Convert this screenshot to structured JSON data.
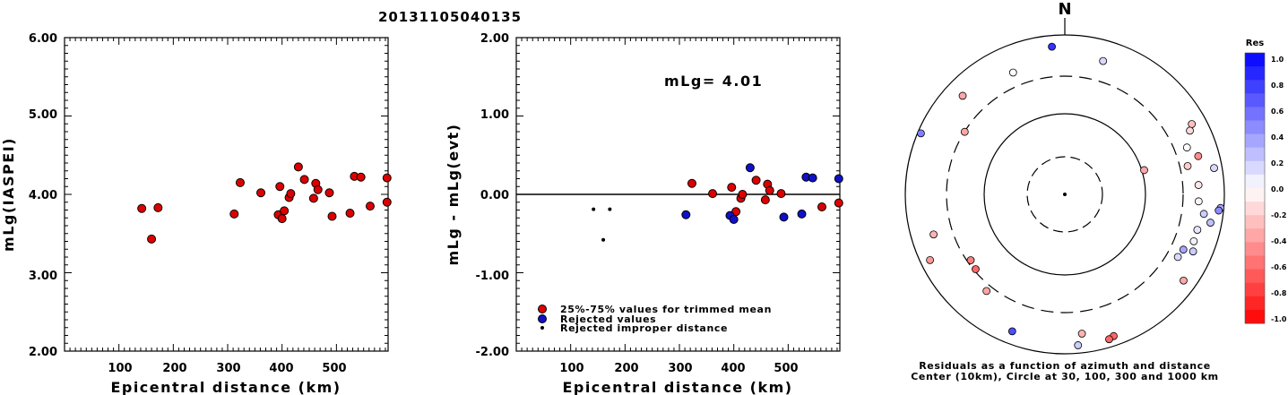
{
  "title": "20131105040135",
  "colors": {
    "accepted": "#dd0000",
    "rejected": "#1010c8",
    "improper": "#000000"
  },
  "chart_data": [
    {
      "type": "scatter",
      "xlabel": "Epicentral distance (km)",
      "ylabel": "mLg(IASPEI)",
      "xlim": [
        0,
        595
      ],
      "ylim": [
        2.0,
        6.0
      ],
      "xticks": [
        "100",
        "200",
        "300",
        "400",
        "500"
      ],
      "yticks": [
        "2.00",
        "3.00",
        "4.00",
        "5.00",
        "6.00"
      ],
      "series": [
        {
          "status": "accepted",
          "points": [
            [
              142,
              3.82
            ],
            [
              160,
              3.43
            ],
            [
              172,
              3.83
            ],
            [
              312,
              3.75
            ],
            [
              323,
              4.15
            ],
            [
              361,
              4.02
            ],
            [
              393,
              3.74
            ],
            [
              396,
              4.1
            ],
            [
              400,
              3.69
            ],
            [
              404,
              3.79
            ],
            [
              413,
              3.96
            ],
            [
              416,
              4.01
            ],
            [
              430,
              4.35
            ],
            [
              441,
              4.19
            ],
            [
              458,
              3.95
            ],
            [
              462,
              4.14
            ],
            [
              466,
              4.06
            ],
            [
              487,
              4.02
            ],
            [
              492,
              3.72
            ],
            [
              525,
              3.76
            ],
            [
              533,
              4.23
            ],
            [
              545,
              4.22
            ],
            [
              562,
              3.85
            ],
            [
              593,
              4.21
            ],
            [
              593,
              3.9
            ]
          ]
        }
      ]
    },
    {
      "type": "scatter",
      "xlabel": "Epicentral distance (km)",
      "ylabel": "mLg - mLg(evt)",
      "annotation": "mLg= 4.01",
      "xlim": [
        0,
        595
      ],
      "ylim": [
        -2.0,
        2.0
      ],
      "xticks": [
        "100",
        "200",
        "300",
        "400",
        "500"
      ],
      "yticks": [
        "-2.00",
        "-1.00",
        "0.00",
        "1.00",
        "2.00"
      ],
      "legend": [
        "25%-75% values for trimmed mean",
        "Rejected values",
        "Rejected improper distance"
      ],
      "legend_position": "bottom-left",
      "series": [
        {
          "name": "25%-75% values for trimmed mean",
          "points": [
            [
              323,
              0.14
            ],
            [
              361,
              0.01
            ],
            [
              396,
              0.09
            ],
            [
              404,
              -0.22
            ],
            [
              413,
              -0.05
            ],
            [
              416,
              0.0
            ],
            [
              441,
              0.18
            ],
            [
              458,
              -0.07
            ],
            [
              462,
              0.13
            ],
            [
              466,
              0.05
            ],
            [
              487,
              0.01
            ],
            [
              562,
              -0.16
            ],
            [
              593,
              -0.11
            ]
          ]
        },
        {
          "name": "Rejected values",
          "points": [
            [
              312,
              -0.26
            ],
            [
              393,
              -0.27
            ],
            [
              400,
              -0.32
            ],
            [
              430,
              0.34
            ],
            [
              492,
              -0.29
            ],
            [
              525,
              -0.25
            ],
            [
              533,
              0.22
            ],
            [
              545,
              0.21
            ],
            [
              593,
              0.2
            ]
          ]
        },
        {
          "name": "Rejected improper distance",
          "points": [
            [
              142,
              -0.19
            ],
            [
              160,
              -0.58
            ],
            [
              172,
              -0.19
            ]
          ]
        }
      ]
    },
    {
      "type": "polar-scatter",
      "north_label": "N",
      "caption_line1": "Residuals as a function of azimuth and distance",
      "caption_line2": "Center (10km), Circle at 30, 100, 300 and 1000 km",
      "colorbar_title": "Res",
      "colorbar_ticks": [
        "1.0",
        "0.8",
        "0.6",
        "0.4",
        "0.2",
        "0.0",
        "-0.2",
        "-0.4",
        "-0.6",
        "-0.8",
        "-1.0"
      ],
      "points": [
        {
          "az": 355,
          "r": 0.93,
          "res": 0.8
        },
        {
          "az": 16,
          "r": 0.87,
          "res": 0.15
        },
        {
          "az": 337,
          "r": 0.83,
          "res": -0.02
        },
        {
          "az": 314,
          "r": 0.89,
          "res": -0.35
        },
        {
          "az": 293,
          "r": 0.98,
          "res": 0.5
        },
        {
          "az": 302,
          "r": 0.74,
          "res": -0.35
        },
        {
          "az": 61,
          "r": 0.91,
          "res": -0.25
        },
        {
          "az": 63,
          "r": 0.88,
          "res": -0.15
        },
        {
          "az": 69,
          "r": 0.82,
          "res": 0.0
        },
        {
          "az": 74,
          "r": 0.87,
          "res": -0.45
        },
        {
          "az": 77,
          "r": 0.79,
          "res": -0.2
        },
        {
          "az": 73,
          "r": 0.52,
          "res": -0.35
        },
        {
          "az": 80,
          "r": 0.95,
          "res": 0.15
        },
        {
          "az": 86,
          "r": 0.84,
          "res": -0.1
        },
        {
          "az": 93,
          "r": 0.84,
          "res": -0.05
        },
        {
          "az": 95,
          "r": 0.98,
          "res": 0.35
        },
        {
          "az": 96,
          "r": 0.97,
          "res": 0.45
        },
        {
          "az": 98,
          "r": 0.88,
          "res": 0.2
        },
        {
          "az": 105,
          "r": 0.86,
          "res": 0.1
        },
        {
          "az": 101,
          "r": 0.93,
          "res": 0.25
        },
        {
          "az": 110,
          "r": 0.86,
          "res": 0.05
        },
        {
          "az": 115,
          "r": 0.82,
          "res": 0.35
        },
        {
          "az": 114,
          "r": 0.88,
          "res": 0.2
        },
        {
          "az": 119,
          "r": 0.81,
          "res": 0.15
        },
        {
          "az": 126,
          "r": 0.92,
          "res": -0.35
        },
        {
          "az": 161,
          "r": 0.94,
          "res": -0.6
        },
        {
          "az": 163,
          "r": 0.95,
          "res": -0.6
        },
        {
          "az": 173,
          "r": 0.88,
          "res": -0.3
        },
        {
          "az": 175,
          "r": 0.95,
          "res": 0.2
        },
        {
          "az": 201,
          "r": 0.92,
          "res": 0.7
        },
        {
          "az": 219,
          "r": 0.78,
          "res": -0.35
        },
        {
          "az": 230,
          "r": 0.73,
          "res": -0.6
        },
        {
          "az": 235,
          "r": 0.72,
          "res": -0.5
        },
        {
          "az": 244,
          "r": 0.94,
          "res": -0.4
        },
        {
          "az": 253,
          "r": 0.86,
          "res": -0.3
        }
      ]
    }
  ]
}
